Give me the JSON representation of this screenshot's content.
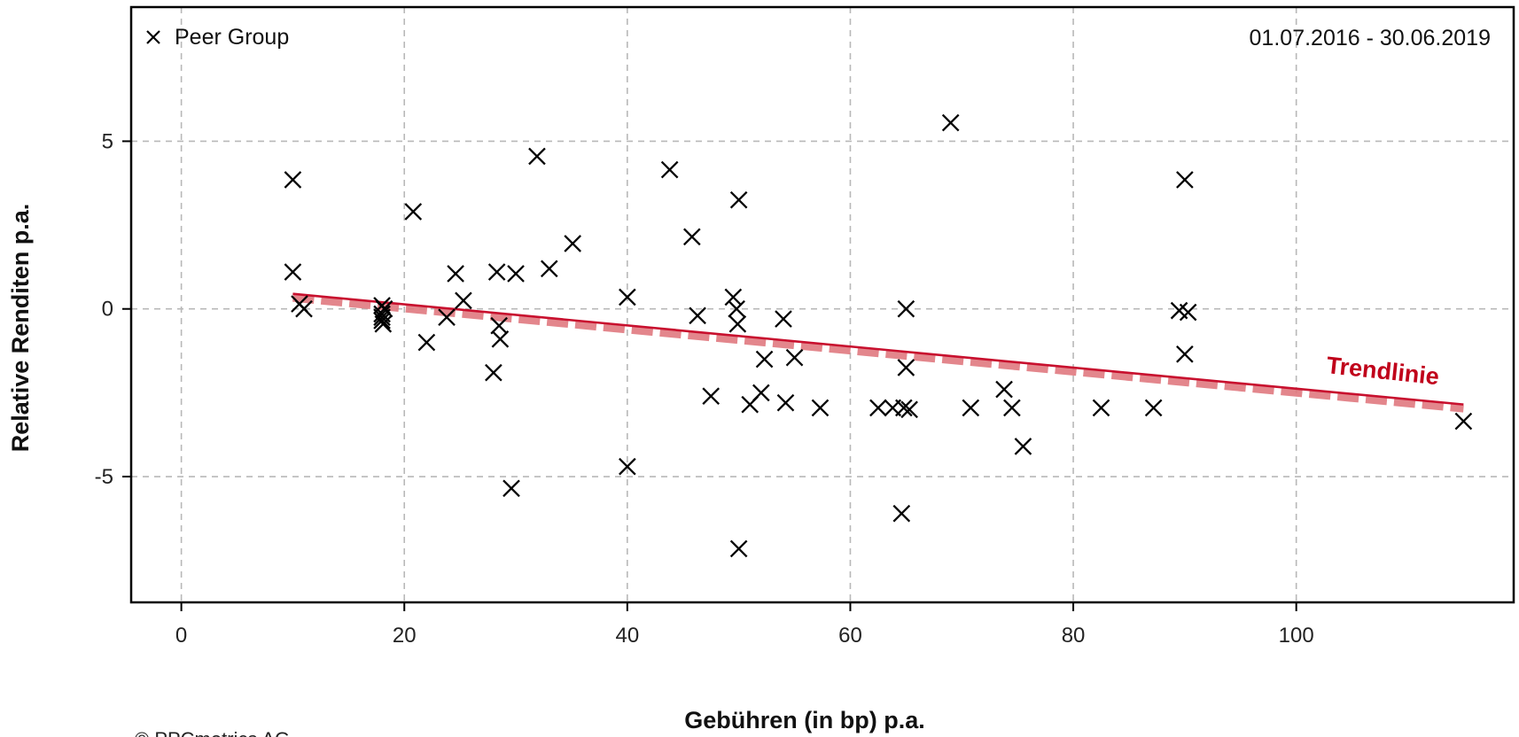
{
  "chart_data": {
    "type": "scatter",
    "xlabel": "Gebühren (in bp) p.a.",
    "ylabel": "Relative Renditen p.a.",
    "xlim": [
      -4.5,
      119.5
    ],
    "ylim": [
      -8.75,
      9.0
    ],
    "x_ticks": [
      "0",
      "20",
      "40",
      "60",
      "80",
      "100"
    ],
    "y_ticks": [
      "-5",
      "0",
      "5"
    ],
    "grid": true,
    "legend": {
      "position": "top-left",
      "entries": [
        {
          "name": "Peer Group",
          "marker": "cross",
          "color": "#000000"
        }
      ]
    },
    "date_range": "01.07.2016 - 30.06.2019",
    "trendline": {
      "label": "Trendlinie",
      "color": "#c8102e",
      "band_color": "#e07a80",
      "x": [
        10,
        115
      ],
      "y": [
        0.45,
        -2.85
      ]
    },
    "series": [
      {
        "name": "Peer Group",
        "marker": "cross",
        "points": [
          [
            10.0,
            3.85
          ],
          [
            10.0,
            1.1
          ],
          [
            10.6,
            0.15
          ],
          [
            11.0,
            0.0
          ],
          [
            18.0,
            0.1
          ],
          [
            18.0,
            -0.15
          ],
          [
            18.0,
            -0.25
          ],
          [
            18.0,
            -0.35
          ],
          [
            18.1,
            -0.45
          ],
          [
            18.2,
            0.0
          ],
          [
            20.8,
            2.9
          ],
          [
            22.0,
            -1.0
          ],
          [
            23.8,
            -0.25
          ],
          [
            24.6,
            1.05
          ],
          [
            25.3,
            0.25
          ],
          [
            28.0,
            -1.9
          ],
          [
            28.3,
            1.1
          ],
          [
            28.5,
            -0.5
          ],
          [
            28.6,
            -0.9
          ],
          [
            29.6,
            -5.35
          ],
          [
            30.0,
            1.05
          ],
          [
            31.9,
            4.55
          ],
          [
            33.0,
            1.2
          ],
          [
            35.1,
            1.95
          ],
          [
            40.0,
            0.35
          ],
          [
            40.0,
            -4.7
          ],
          [
            43.8,
            4.15
          ],
          [
            45.8,
            2.15
          ],
          [
            46.3,
            -0.2
          ],
          [
            47.5,
            -2.6
          ],
          [
            49.5,
            0.35
          ],
          [
            49.8,
            0.0
          ],
          [
            49.9,
            -0.45
          ],
          [
            50.0,
            3.25
          ],
          [
            50.0,
            -7.15
          ],
          [
            51.0,
            -2.85
          ],
          [
            52.0,
            -2.5
          ],
          [
            52.3,
            -1.5
          ],
          [
            54.0,
            -0.3
          ],
          [
            54.2,
            -2.8
          ],
          [
            55.0,
            -1.45
          ],
          [
            57.3,
            -2.95
          ],
          [
            62.5,
            -2.95
          ],
          [
            63.8,
            -2.95
          ],
          [
            64.6,
            -6.1
          ],
          [
            64.8,
            -2.95
          ],
          [
            65.0,
            -1.75
          ],
          [
            65.0,
            0.0
          ],
          [
            65.3,
            -3.0
          ],
          [
            69.0,
            5.55
          ],
          [
            70.8,
            -2.95
          ],
          [
            73.8,
            -2.4
          ],
          [
            74.5,
            -2.95
          ],
          [
            75.5,
            -4.1
          ],
          [
            82.5,
            -2.95
          ],
          [
            87.2,
            -2.95
          ],
          [
            89.5,
            -0.05
          ],
          [
            90.0,
            3.85
          ],
          [
            90.0,
            -1.35
          ],
          [
            90.3,
            -0.1
          ],
          [
            115.0,
            -3.35
          ]
        ]
      }
    ]
  },
  "footer": {
    "copyright": "© PPCmetrics AG"
  }
}
